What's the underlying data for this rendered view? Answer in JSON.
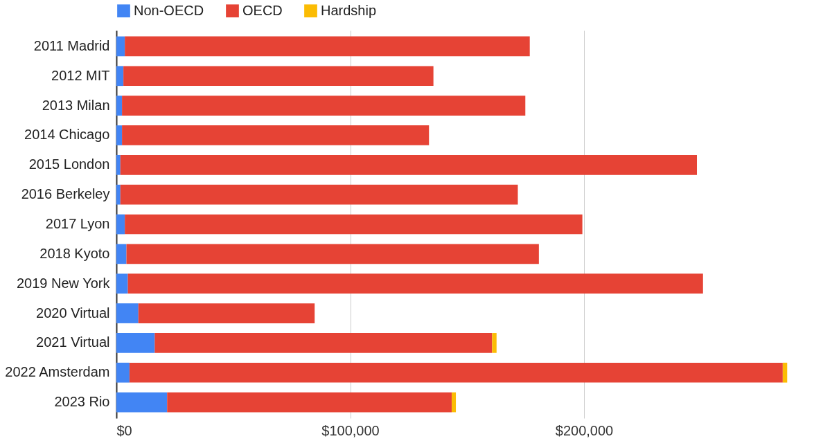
{
  "chart_data": {
    "type": "bar",
    "orientation": "horizontal",
    "stacked": true,
    "categories": [
      "2011 Madrid",
      "2012 MIT",
      "2013 Milan",
      "2014 Chicago",
      "2015 London",
      "2016 Berkeley",
      "2017 Lyon",
      "2018 Kyoto",
      "2019 New York",
      "2020 Virtual",
      "2021 Virtual",
      "2022 Amsterdam",
      "2023 Rio"
    ],
    "series": [
      {
        "name": "Non-OECD",
        "color": "#4285f4",
        "values": [
          3600,
          3000,
          2400,
          2400,
          1700,
          1700,
          3600,
          4300,
          4900,
          9400,
          16400,
          5600,
          21700
        ]
      },
      {
        "name": "OECD",
        "color": "#e64335",
        "values": [
          173200,
          132600,
          172500,
          131300,
          246600,
          170000,
          195700,
          176400,
          246000,
          75400,
          144300,
          279400,
          121700
        ]
      },
      {
        "name": "Hardship",
        "color": "#fbbc04",
        "values": [
          null,
          null,
          null,
          null,
          null,
          null,
          null,
          null,
          null,
          null,
          1900,
          1900,
          1800
        ]
      }
    ],
    "xlim": [
      0,
      288000
    ],
    "xticks": [
      {
        "value": 0,
        "label": "$0"
      },
      {
        "value": 100000,
        "label": "$100,000"
      },
      {
        "value": 200000,
        "label": "$200,000"
      }
    ],
    "grid": "x",
    "legend": "top"
  }
}
